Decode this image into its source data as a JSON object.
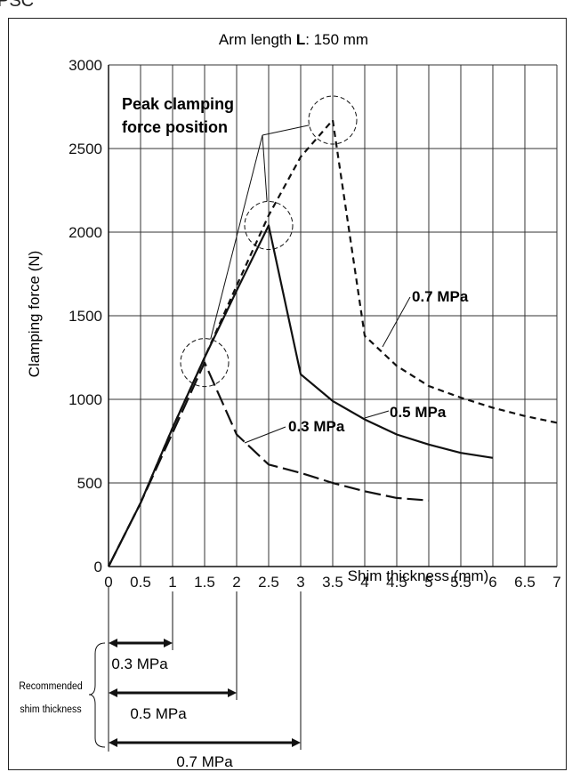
{
  "corner_fragment": "PSC",
  "chart_data": {
    "type": "line",
    "title_prefix": "Arm length ",
    "title_bold": "L",
    "title_suffix": ": 150 mm",
    "xlabel": "Shim thickness (mm)",
    "ylabel": "Clamping force (N)",
    "xlim": [
      0,
      7
    ],
    "ylim": [
      0,
      3000
    ],
    "x_ticks": [
      "0",
      "0.5",
      "1",
      "1.5",
      "2",
      "2.5",
      "3",
      "3.5",
      "4",
      "4.5",
      "5",
      "5.5",
      "6",
      "6.5",
      "7"
    ],
    "y_ticks": [
      "0",
      "500",
      "1000",
      "1500",
      "2000",
      "2500",
      "3000"
    ],
    "grid": true,
    "series": [
      {
        "name": "0.3 MPa",
        "style": "long-dash",
        "points": [
          [
            0,
            0
          ],
          [
            0.5,
            380
          ],
          [
            1,
            800
          ],
          [
            1.5,
            1220
          ],
          [
            2,
            790
          ],
          [
            2.5,
            610
          ],
          [
            3,
            560
          ],
          [
            3.5,
            500
          ],
          [
            4,
            450
          ],
          [
            4.5,
            410
          ],
          [
            5,
            395
          ]
        ]
      },
      {
        "name": "0.5 MPa",
        "style": "solid",
        "points": [
          [
            0,
            0
          ],
          [
            0.5,
            380
          ],
          [
            1,
            830
          ],
          [
            1.5,
            1250
          ],
          [
            2,
            1650
          ],
          [
            2.5,
            2040
          ],
          [
            3,
            1150
          ],
          [
            3.5,
            990
          ],
          [
            4,
            880
          ],
          [
            4.5,
            790
          ],
          [
            5,
            730
          ],
          [
            5.5,
            680
          ],
          [
            6,
            650
          ]
        ]
      },
      {
        "name": "0.7 MPa",
        "style": "short-dash",
        "points": [
          [
            0,
            0
          ],
          [
            0.5,
            380
          ],
          [
            1,
            830
          ],
          [
            1.5,
            1250
          ],
          [
            2,
            1680
          ],
          [
            2.5,
            2100
          ],
          [
            3,
            2450
          ],
          [
            3.5,
            2670
          ],
          [
            4,
            1380
          ],
          [
            4.5,
            1200
          ],
          [
            5,
            1080
          ],
          [
            5.5,
            1010
          ],
          [
            6,
            950
          ],
          [
            6.5,
            900
          ],
          [
            7,
            860
          ]
        ]
      }
    ],
    "annotation": {
      "text_line1": "Peak clamping",
      "text_line2": "force position",
      "peaks": [
        [
          1.5,
          1220
        ],
        [
          2.5,
          2040
        ],
        [
          3.5,
          2670
        ]
      ]
    },
    "series_labels": [
      "0.3 MPa",
      "0.5 MPa",
      "0.7 MPa"
    ],
    "recommended": {
      "label_line1": "Recommended",
      "label_line2": "shim thickness",
      "ranges": [
        {
          "label": "0.3 MPa",
          "from": 0,
          "to": 1
        },
        {
          "label": "0.5 MPa",
          "from": 0,
          "to": 2
        },
        {
          "label": "0.7 MPa",
          "from": 0,
          "to": 3
        }
      ]
    }
  }
}
